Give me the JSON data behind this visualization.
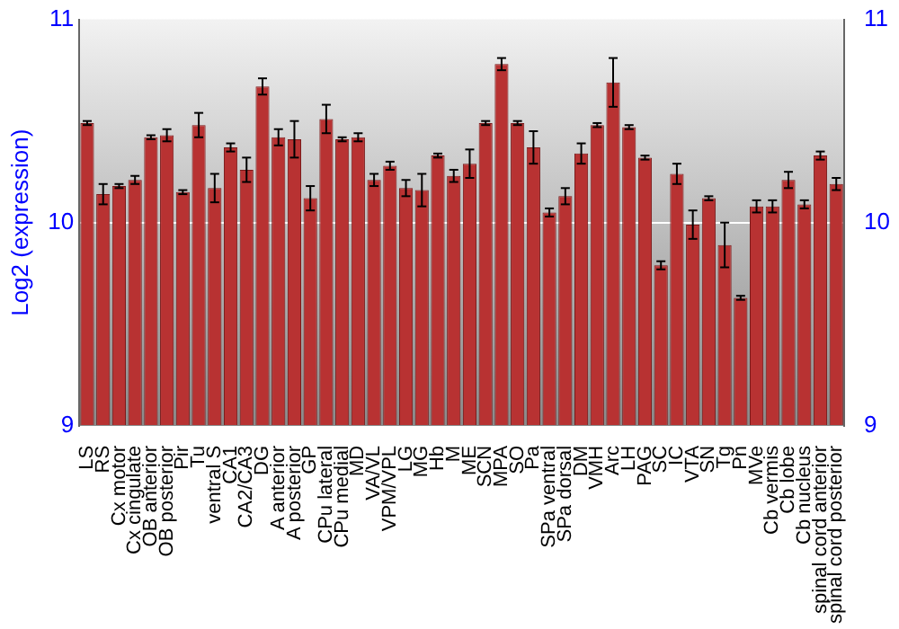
{
  "chart_data": {
    "type": "bar",
    "ylabel": "Log2 (expression)",
    "categories": [
      "LS",
      "RS",
      "Cx motor",
      "Cx cingulate",
      "OB anterior",
      "OB posterior",
      "Pir",
      "Tu",
      "ventral S",
      "CA1",
      "CA2/CA3",
      "DG",
      "A anterior",
      "A posterior",
      "GP",
      "CPu lateral",
      "CPu medial",
      "MD",
      "VA/VL",
      "VPM/VPL",
      "LG",
      "MG",
      "Hb",
      "M",
      "ME",
      "SCN",
      "MPA",
      "SO",
      "Pa",
      "SPa ventral",
      "SPa dorsal",
      "DM",
      "VMH",
      "Arc",
      "LH",
      "PAG",
      "SC",
      "IC",
      "VTA",
      "SN",
      "Tg",
      "Pn",
      "MVe",
      "Cb vermis",
      "Cb lobe",
      "Cb nucleus",
      "spinal cord anterior",
      "spinal cord posterior"
    ],
    "values": [
      10.49,
      10.14,
      10.18,
      10.21,
      10.42,
      10.43,
      10.15,
      10.48,
      10.17,
      10.37,
      10.26,
      10.67,
      10.42,
      10.41,
      10.12,
      10.51,
      10.41,
      10.42,
      10.21,
      10.28,
      10.17,
      10.16,
      10.33,
      10.23,
      10.29,
      10.49,
      10.78,
      10.49,
      10.37,
      10.05,
      10.13,
      10.34,
      10.48,
      10.69,
      10.47,
      10.32,
      9.79,
      10.24,
      9.99,
      10.12,
      9.89,
      9.63,
      10.08,
      10.08,
      10.21,
      10.09,
      10.33,
      10.19
    ],
    "errors": [
      0.01,
      0.05,
      0.01,
      0.02,
      0.01,
      0.03,
      0.01,
      0.06,
      0.07,
      0.02,
      0.06,
      0.04,
      0.04,
      0.09,
      0.06,
      0.07,
      0.01,
      0.02,
      0.03,
      0.02,
      0.04,
      0.08,
      0.01,
      0.03,
      0.07,
      0.01,
      0.03,
      0.01,
      0.08,
      0.02,
      0.04,
      0.05,
      0.01,
      0.12,
      0.01,
      0.01,
      0.02,
      0.05,
      0.07,
      0.01,
      0.11,
      0.01,
      0.03,
      0.03,
      0.04,
      0.02,
      0.02,
      0.03
    ],
    "color": "#b83232",
    "ylim": [
      9,
      11
    ],
    "yticks": [
      9,
      10,
      11
    ],
    "y2lim": [
      9,
      11
    ],
    "y2ticks": [
      9,
      10,
      11
    ],
    "grid": "y",
    "legend": false
  }
}
